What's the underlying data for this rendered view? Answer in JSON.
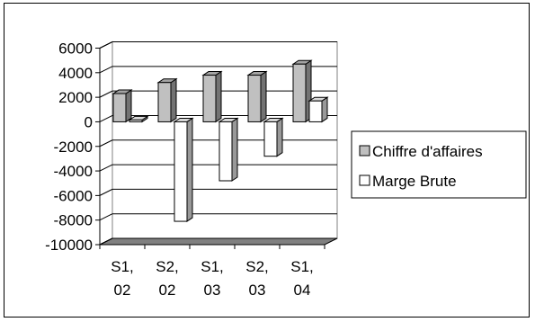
{
  "chart_data": {
    "type": "bar",
    "categories": [
      [
        "S1,",
        "02"
      ],
      [
        "S2,",
        "02"
      ],
      [
        "S1,",
        "03"
      ],
      [
        "S2,",
        "03"
      ],
      [
        "S1,",
        "04"
      ]
    ],
    "series": [
      {
        "name": "Chiffre d'affaires",
        "values": [
          2300,
          3200,
          3800,
          3800,
          4700
        ],
        "color": "#c0c0c0"
      },
      {
        "name": "Marge Brute",
        "values": [
          150,
          -8100,
          -4800,
          -2800,
          1700
        ],
        "color": "#ffffff"
      }
    ],
    "ylim": [
      -10000,
      6000
    ],
    "yticks": [
      6000,
      4000,
      2000,
      0,
      -2000,
      -4000,
      -6000,
      -8000,
      -10000
    ],
    "grid": true,
    "legend": "right",
    "floor_color": "#808080"
  }
}
